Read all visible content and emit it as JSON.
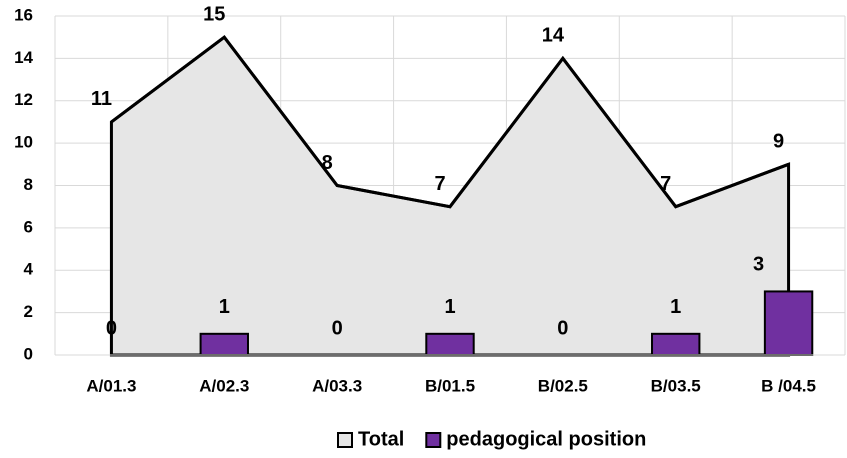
{
  "chart_data": {
    "type": "combo",
    "categories": [
      "A/01.3",
      "A/02.3",
      "A/03.3",
      "B/01.5",
      "B/02.5",
      "B/03.5",
      "B /04.5"
    ],
    "series": [
      {
        "name": "Total",
        "type": "area",
        "color": "#e6e6e6",
        "values": [
          11,
          15,
          8,
          7,
          14,
          7,
          9
        ]
      },
      {
        "name": "pedagogical position",
        "type": "bar",
        "color": "#7030a0",
        "values": [
          0,
          1,
          0,
          1,
          0,
          1,
          3
        ]
      }
    ],
    "ylim": [
      0,
      16
    ],
    "yticks": [
      0,
      2,
      4,
      6,
      8,
      10,
      12,
      14,
      16
    ],
    "grid": true,
    "legend": "bottom"
  }
}
